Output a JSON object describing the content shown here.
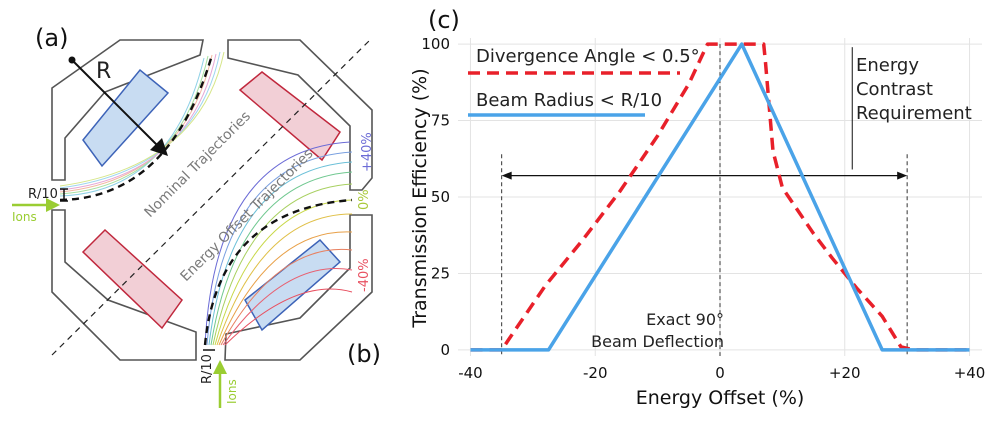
{
  "panels": {
    "a": "(a)",
    "b": "(b)",
    "c": "(c)"
  },
  "diagram": {
    "radius_label": "R",
    "beam_gap_label": "R/10",
    "ions_label": "Ions",
    "nominal_label": "Nominal Trajectories",
    "offset_label": "Energy Offset Trajectories",
    "offset_plus": "+40%",
    "offset_zero": "0%",
    "offset_minus": "-40%",
    "colors": {
      "frame": "#555555",
      "blue_fill": "#c8dcf2",
      "blue_stroke": "#3d63b8",
      "red_fill": "#f2cfd6",
      "red_stroke": "#c0283d",
      "ions_arrow": "#9acd32"
    }
  },
  "chart_data": {
    "type": "line",
    "title": "",
    "xlabel": "Energy Offset (%)",
    "ylabel": "Transmission Efficiency (%)",
    "xlim": [
      -42,
      42
    ],
    "ylim": [
      -2,
      102
    ],
    "xticks": [
      -40,
      -20,
      0,
      20,
      40
    ],
    "xtick_labels": [
      "-40",
      "-20",
      "0",
      "+20",
      "+40"
    ],
    "yticks": [
      0,
      25,
      50,
      75,
      100
    ],
    "ytick_labels": [
      "0",
      "25",
      "50",
      "75",
      "100"
    ],
    "grid": true,
    "series": [
      {
        "name": "Divergence Angle < 0.5°",
        "style": "dashed",
        "color": "#e8202a",
        "x": [
          -40,
          -35,
          -33,
          -28,
          -22,
          -16,
          -10,
          -5,
          -2,
          0,
          2.5,
          7,
          7.3,
          8.5,
          10,
          12,
          15,
          18,
          22,
          26,
          29,
          31,
          35,
          40
        ],
        "y": [
          0,
          0,
          6,
          21,
          36,
          52,
          70,
          87,
          100,
          100,
          100,
          100,
          94,
          65,
          53,
          47,
          38,
          30,
          20,
          11,
          1,
          0,
          0,
          0
        ]
      },
      {
        "name": "Beam Radius < R/10",
        "style": "solid",
        "color": "#4aa3e8",
        "x": [
          -40,
          -27.5,
          3.5,
          26,
          40
        ],
        "y": [
          0,
          0,
          100,
          0,
          0
        ]
      }
    ],
    "annotations": {
      "energy_contrast": "Energy\nContrast\nRequirement",
      "energy_contrast_range": [
        -35,
        30
      ],
      "exact_90": "Exact 90°\nBeam Deflection"
    }
  }
}
